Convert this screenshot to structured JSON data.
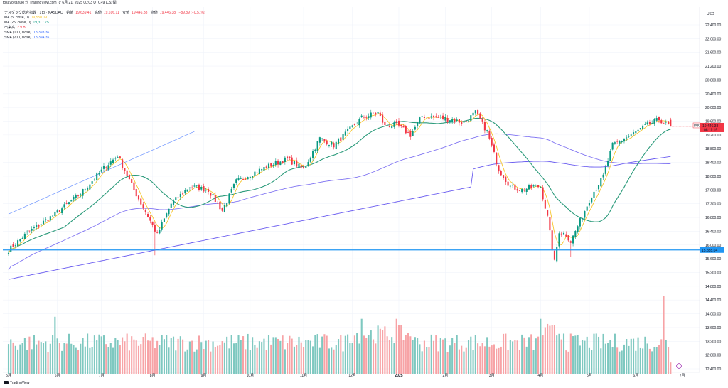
{
  "header": {
    "published": "tosayo-tanuki が TradingView.com で 6月 21, 2025 00:03 UTC+9 に公開"
  },
  "legend": {
    "symbol": "ナスダック総合指数 · 1日 · NASDAQ",
    "open_label": "始値",
    "open": "19,639.41",
    "high_label": "高値",
    "high": "19,696.11",
    "low_label": "安値",
    "low": "19,446.38",
    "close_label": "終値",
    "close": "19,446.38",
    "change": "−89.89 (−0.51%)",
    "indicators": [
      {
        "name": "MA (5, close, 0)",
        "value": "19,550.09",
        "color": "#f7c52b"
      },
      {
        "name": "MA (25, close, 0)",
        "value": "19,317.75",
        "color": "#089981"
      },
      {
        "name": "出来高",
        "value": "2.9 B",
        "color": "#f23645"
      },
      {
        "name": "SMA (100, close)",
        "value": "18,393.36",
        "color": "#2962ff"
      },
      {
        "name": "SMA (200, close)",
        "value": "18,394.35",
        "color": "#2962ff"
      }
    ]
  },
  "chart_data": {
    "type": "candlestick",
    "currency": "USD",
    "y_ticks": [
      12400,
      12800,
      13200,
      13600,
      14000,
      14400,
      14800,
      15200,
      15600,
      16000,
      16400,
      16800,
      17200,
      17600,
      18000,
      18400,
      18800,
      19200,
      19600,
      20000,
      20400,
      20800,
      21200,
      21600,
      22000,
      22400
    ],
    "y_tick_labels": [
      "12,400.00",
      "12,800.00",
      "13,200.00",
      "13,600.00",
      "14,000.00",
      "14,400.00",
      "14,800.00",
      "15,200.00",
      "15,600.00",
      "16,000.00",
      "16,400.00",
      "16,800.00",
      "17,200.00",
      "17,600.00",
      "18,000.00",
      "18,400.00",
      "18,800.00",
      "19,200.00",
      "19,600.00",
      "20,000.00",
      "20,400.00",
      "20,800.00",
      "21,200.00",
      "21,600.00",
      "22,000.00",
      "22,400.00"
    ],
    "ylim": [
      12300,
      22700
    ],
    "months": [
      "5月",
      "6月",
      "7月",
      "8月",
      "9月",
      "10月",
      "11月",
      "12月",
      "2025",
      "2月",
      "3月",
      "4月",
      "5月",
      "6月",
      "7月"
    ],
    "month_index": [
      0,
      21,
      40,
      62,
      84,
      104,
      127,
      148,
      168,
      188,
      208,
      229,
      250,
      270,
      290
    ],
    "anchors": [
      [
        0,
        15850
      ],
      [
        8,
        16350
      ],
      [
        20,
        16900
      ],
      [
        31,
        17500
      ],
      [
        42,
        18300
      ],
      [
        47,
        18600
      ],
      [
        54,
        17600
      ],
      [
        61,
        16700
      ],
      [
        64,
        16300
      ],
      [
        70,
        17200
      ],
      [
        78,
        17700
      ],
      [
        86,
        17600
      ],
      [
        92,
        17000
      ],
      [
        98,
        17850
      ],
      [
        104,
        18050
      ],
      [
        112,
        18300
      ],
      [
        120,
        18500
      ],
      [
        127,
        18200
      ],
      [
        134,
        19100
      ],
      [
        140,
        18900
      ],
      [
        146,
        19300
      ],
      [
        152,
        19700
      ],
      [
        159,
        19850
      ],
      [
        162,
        19450
      ],
      [
        167,
        19500
      ],
      [
        173,
        19200
      ],
      [
        178,
        19750
      ],
      [
        185,
        19700
      ],
      [
        191,
        19650
      ],
      [
        196,
        19550
      ],
      [
        201,
        19850
      ],
      [
        206,
        19300
      ],
      [
        211,
        18200
      ],
      [
        216,
        17700
      ],
      [
        221,
        17600
      ],
      [
        226,
        17700
      ],
      [
        229,
        17700
      ],
      [
        232,
        16800
      ],
      [
        234,
        15900
      ],
      [
        235,
        15500
      ],
      [
        237,
        16400
      ],
      [
        240,
        16300
      ],
      [
        242,
        16100
      ],
      [
        246,
        16700
      ],
      [
        251,
        17450
      ],
      [
        256,
        18000
      ],
      [
        260,
        18900
      ],
      [
        264,
        19050
      ],
      [
        268,
        19200
      ],
      [
        274,
        19450
      ],
      [
        280,
        19650
      ],
      [
        285,
        19446
      ]
    ],
    "last_index": 285,
    "total_slots": 295,
    "horizontal_line": {
      "value": 15855.04,
      "label": "15,855.04",
      "color": "#2196f3"
    },
    "last_price": {
      "symbol": "IXIC",
      "value": "19,446.38",
      "countdown": "08:11:19",
      "color": "#f23645"
    },
    "trendline": {
      "from": [
        0,
        16900
      ],
      "to": [
        80,
        19300
      ],
      "color": "#2962ff"
    },
    "volume": {
      "unit": "B",
      "last": 2.9
    },
    "grid": true,
    "colors": {
      "up": "#089981",
      "down": "#f23645",
      "vol_up": "#7ec8c0",
      "vol_down": "#f7a3a6",
      "ma5": "#f7c52b",
      "ma25": "#2a9a7a",
      "sma": "#6a5cf0"
    }
  },
  "footer": {
    "brand": "TradingView"
  }
}
